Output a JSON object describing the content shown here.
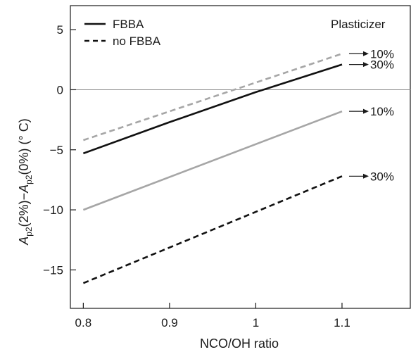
{
  "chart_data": {
    "type": "line",
    "title": "",
    "xlabel": "NCO/OH ratio",
    "ylabel": {
      "main_a": "A",
      "sub_a": "p2",
      "mid": "(2%)−",
      "main_b": "A",
      "sub_b": "p2",
      "tail": "(0%) (° C)"
    },
    "xlim": [
      0.785,
      1.18
    ],
    "ylim": [
      -18.2,
      7
    ],
    "xticks": [
      0.8,
      0.9,
      1.0,
      1.1
    ],
    "xtick_labels": [
      "0.8",
      "0.9",
      "1",
      "1.1"
    ],
    "yticks": [
      5,
      0,
      -5,
      -10,
      -15
    ],
    "ytick_labels": [
      "5",
      "0",
      "−5",
      "−10",
      "−15"
    ],
    "reference_line_y": 0,
    "grid": false,
    "legend": {
      "placement": "top-left",
      "entries": [
        {
          "label": "FBBA",
          "style": "solid"
        },
        {
          "label": "no FBBA",
          "style": "dashed"
        }
      ]
    },
    "annotation_header": "Plasticizer",
    "series": [
      {
        "style": "dashed",
        "color": "#a6a6a6",
        "x": [
          0.8,
          1.1
        ],
        "y": [
          -4.2,
          3.0
        ],
        "end_label": "10%"
      },
      {
        "style": "solid",
        "color": "#111111",
        "x": [
          0.8,
          0.9,
          1.0,
          1.1
        ],
        "y": [
          -5.3,
          -2.7,
          -0.2,
          2.1
        ],
        "end_label": "30%"
      },
      {
        "style": "solid",
        "color": "#a6a6a6",
        "x": [
          0.8,
          1.1
        ],
        "y": [
          -10.0,
          -1.8
        ],
        "end_label": "10%"
      },
      {
        "style": "dashed",
        "color": "#111111",
        "x": [
          0.8,
          1.1
        ],
        "y": [
          -16.1,
          -7.2
        ],
        "end_label": "30%"
      }
    ]
  }
}
